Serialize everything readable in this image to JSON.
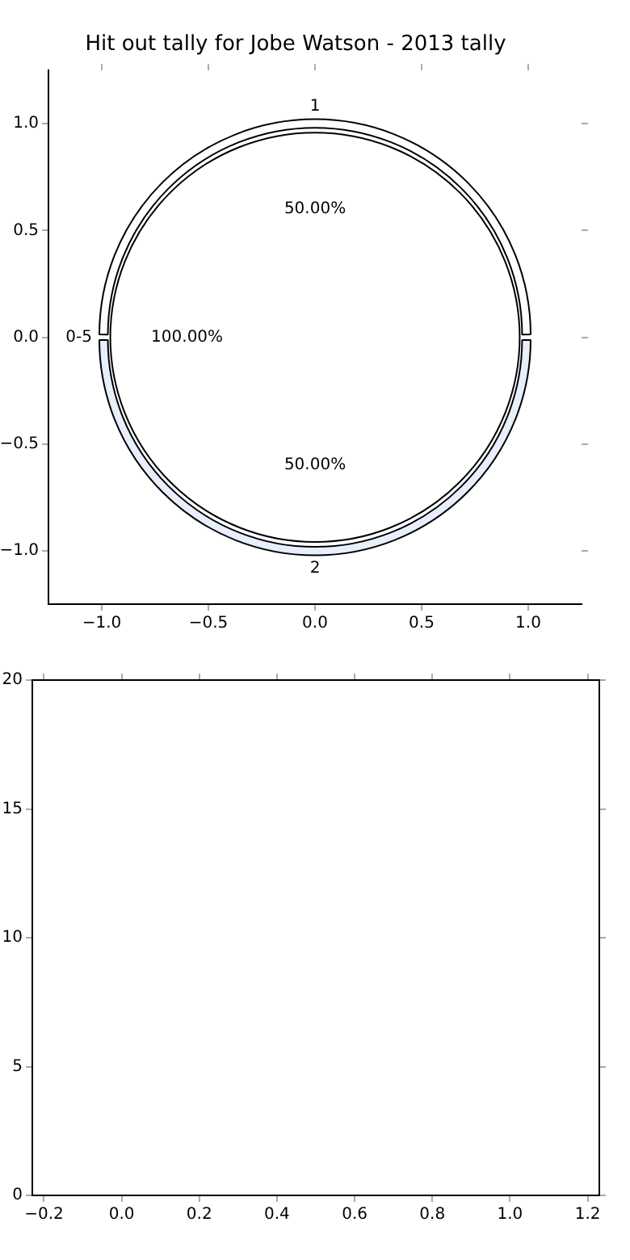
{
  "chart_data": [
    {
      "type": "scatter",
      "title": "Hit out tally for Jobe Watson - 2013 tally",
      "xlim": [
        -1.25,
        1.25
      ],
      "ylim": [
        -1.25,
        1.25
      ],
      "xticks": [
        {
          "value": -1,
          "label": "−1.0"
        },
        {
          "value": -0.5,
          "label": "−0.5"
        },
        {
          "value": 0,
          "label": "0.0"
        },
        {
          "value": 0.5,
          "label": "0.5"
        },
        {
          "value": 1,
          "label": "1.0"
        }
      ],
      "yticks": [
        {
          "value": -1,
          "label": "−1.0"
        },
        {
          "value": -0.5,
          "label": "−0.5"
        },
        {
          "value": 0,
          "label": "0.0"
        },
        {
          "value": 0.5,
          "label": "0.5"
        },
        {
          "value": 1,
          "label": "1.0"
        }
      ]
    },
    {
      "type": "donut",
      "categories": [
        "1",
        "2"
      ],
      "values": [
        50,
        50
      ],
      "colors": [
        "#ffffff",
        "#e8eefb"
      ],
      "value_labels": [
        "50.00%",
        "50.00%"
      ]
    },
    {
      "type": "pie",
      "categories": [
        "0-5"
      ],
      "values": [
        100
      ],
      "colors": [
        "#ffffff"
      ],
      "value_labels": [
        "100.00%"
      ]
    },
    {
      "type": "scatter",
      "xlim": [
        -0.23,
        1.23
      ],
      "ylim": [
        0,
        20
      ],
      "xticks": [
        {
          "value": -0.2,
          "label": "−0.2"
        },
        {
          "value": 0,
          "label": "0.0"
        },
        {
          "value": 0.2,
          "label": "0.2"
        },
        {
          "value": 0.4,
          "label": "0.4"
        },
        {
          "value": 0.6,
          "label": "0.6"
        },
        {
          "value": 0.8,
          "label": "0.8"
        },
        {
          "value": 1,
          "label": "1.0"
        },
        {
          "value": 1.2,
          "label": "1.2"
        }
      ],
      "yticks": [
        0,
        5,
        10,
        15,
        20
      ]
    }
  ]
}
